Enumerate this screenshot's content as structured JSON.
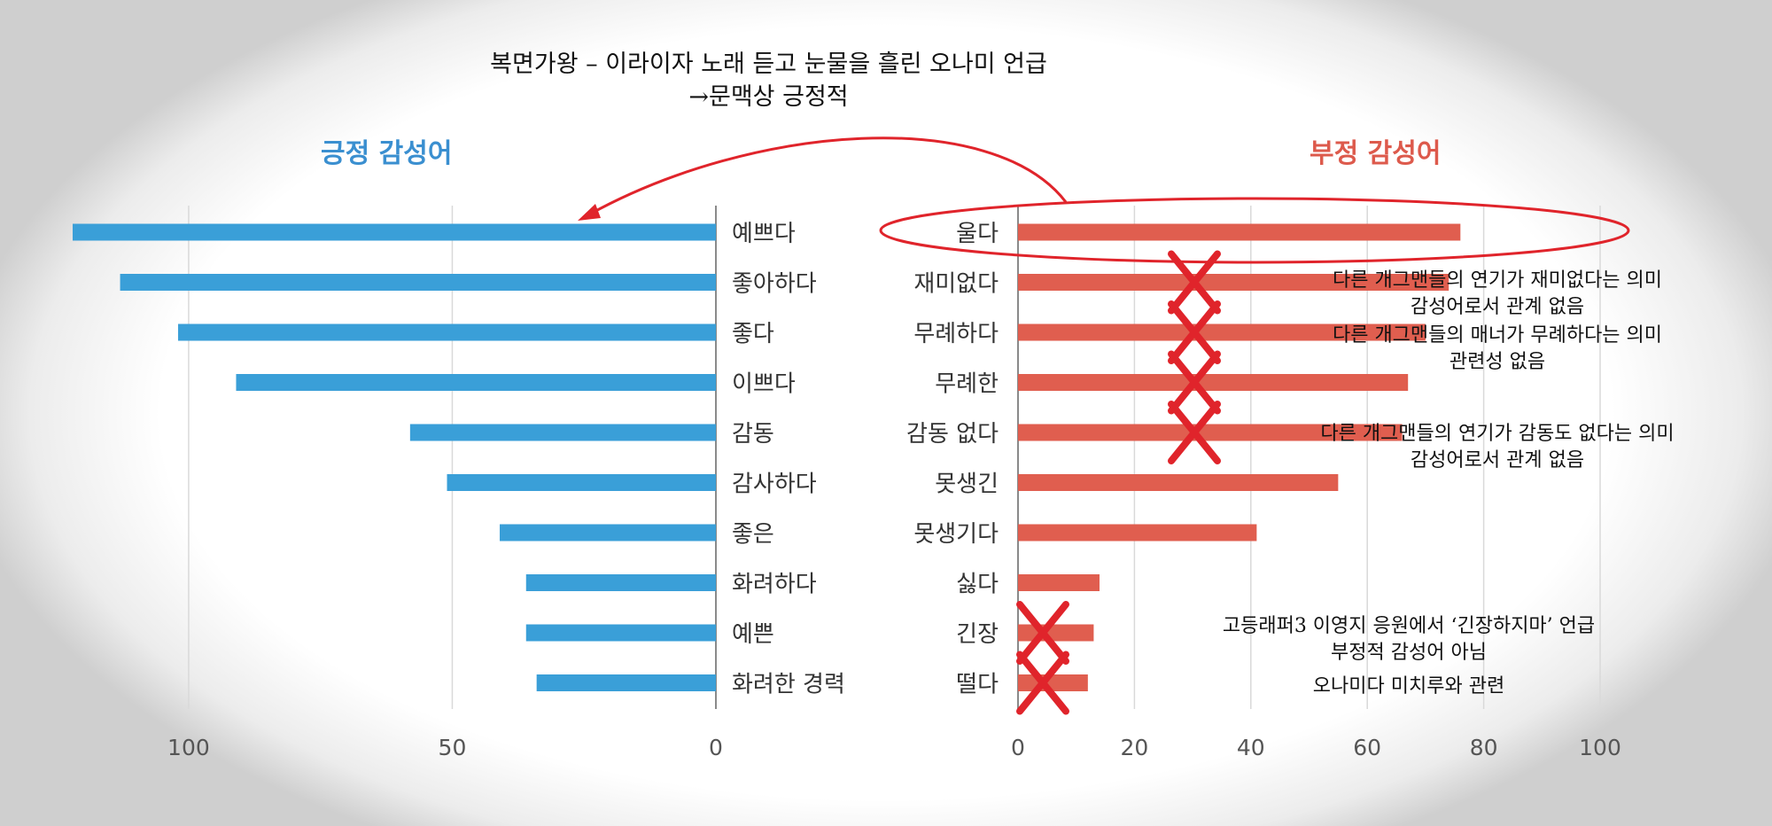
{
  "caption": {
    "line1": "복면가왕 – 이라이자 노래 듣고 눈물을 흘린 오나미 언급",
    "line2": "→문맥상 긍정적"
  },
  "chart_data": [
    {
      "type": "bar",
      "orientation": "horizontal",
      "direction": "right-to-left",
      "title": "긍정 감성어",
      "color": "#3a9fd8",
      "categories": [
        "예쁘다",
        "좋아하다",
        "좋다",
        "이쁘다",
        "감동",
        "감사하다",
        "좋은",
        "화려하다",
        "예쁜",
        "화려한 경력"
      ],
      "values": [
        122,
        113,
        102,
        91,
        58,
        51,
        41,
        36,
        36,
        34
      ],
      "xlim": [
        0,
        122
      ],
      "xticks": [
        100,
        50,
        0
      ],
      "grid": true
    },
    {
      "type": "bar",
      "orientation": "horizontal",
      "title": "부정 감성어",
      "color": "#e05e4f",
      "categories": [
        "울다",
        "재미없다",
        "무례하다",
        "무례한",
        "감동 없다",
        "못생긴",
        "못생기다",
        "싫다",
        "긴장",
        "떨다"
      ],
      "values": [
        76,
        74,
        70,
        67,
        66,
        55,
        41,
        14,
        13,
        12
      ],
      "xlim": [
        0,
        100
      ],
      "xticks": [
        0,
        20,
        40,
        60,
        80,
        100
      ],
      "grid": true
    }
  ],
  "annotations": {
    "highlight_color": "#e0242b",
    "circled_category": "울다",
    "crossed_out": [
      "재미없다",
      "무례하다",
      "무례한",
      "감동 없다",
      "긴장",
      "떨다"
    ],
    "arrow": {
      "from": "울다",
      "to": "예쁘다"
    },
    "notes": [
      {
        "lines": [
          "다른 개그맨들의 연기가 재미없다는 의미",
          "감성어로서 관계 없음"
        ]
      },
      {
        "lines": [
          "다른 개그맨들의 매너가 무례하다는 의미",
          "관련성 없음"
        ]
      },
      {
        "lines": [
          "다른 개그맨들의 연기가 감동도 없다는 의미",
          "감성어로서 관계 없음"
        ]
      },
      {
        "lines": [
          "고등래퍼3 이영지 응원에서 ‘긴장하지마’ 언급",
          "부정적 감성어 아님"
        ]
      },
      {
        "lines": [
          "오나미다 미치루와 관련"
        ]
      }
    ]
  }
}
